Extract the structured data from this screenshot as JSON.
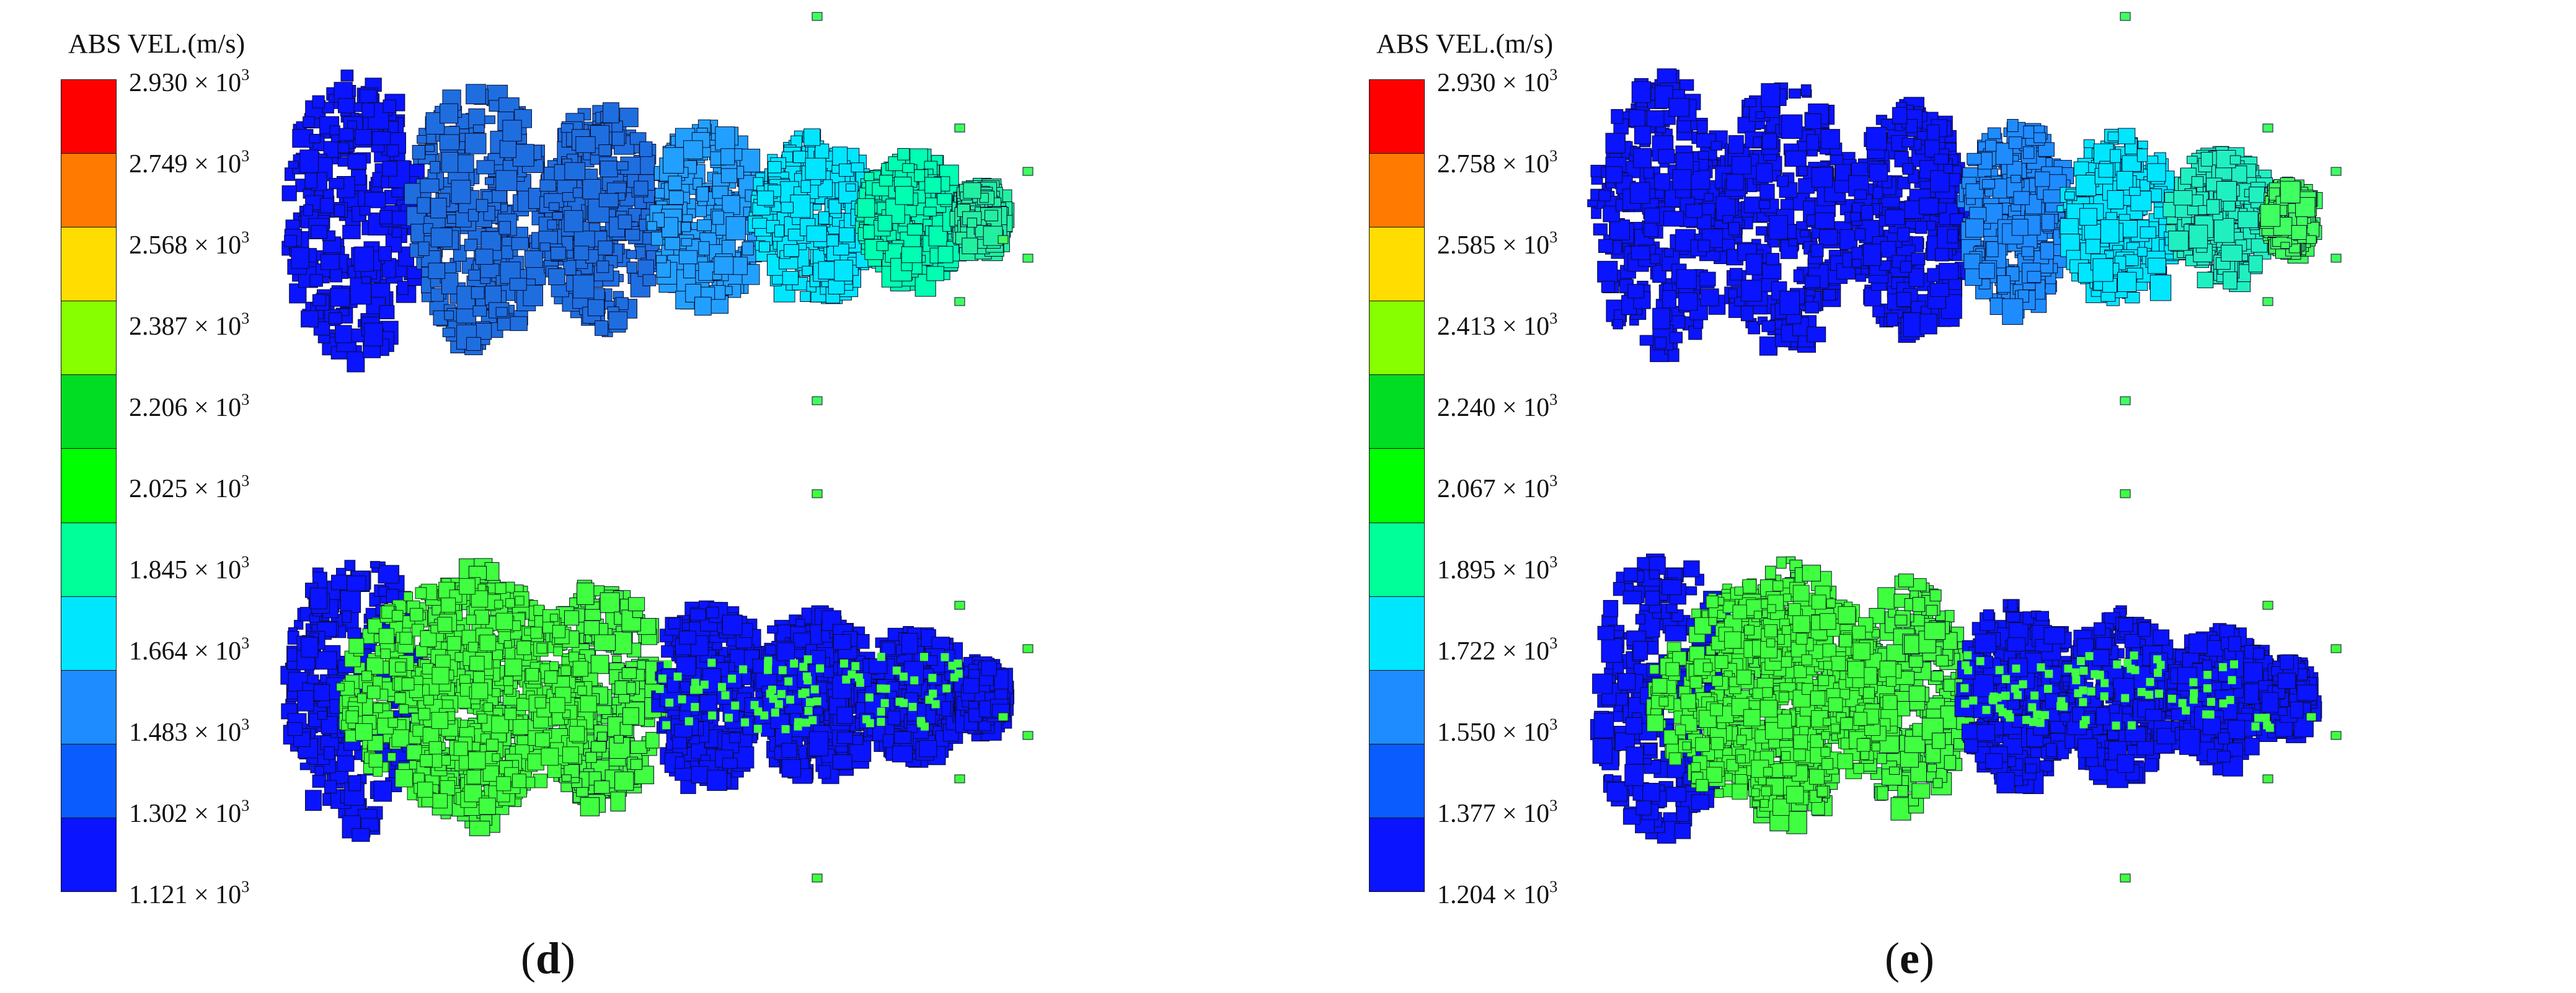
{
  "panels": [
    {
      "caption_letter": "d",
      "legend": {
        "title": "ABS VEL.(m/s)",
        "exponent": "3",
        "ticks": [
          "2.930",
          "2.749",
          "2.568",
          "2.387",
          "2.206",
          "2.025",
          "1.845",
          "1.664",
          "1.483",
          "1.302",
          "1.121"
        ],
        "colors": [
          "#ff0000",
          "#ff7a00",
          "#ffdd00",
          "#88ff00",
          "#00dd22",
          "#00ff00",
          "#00ff99",
          "#00e6ff",
          "#1e8cff",
          "#0a5cff",
          "#0a14ff"
        ]
      },
      "fragments": {
        "top_palette": [
          "#0a14ff",
          "#1e6ee0",
          "#22a0ff",
          "#00e6ff",
          "#00ffb0",
          "#22f0a0",
          "#40ff60"
        ],
        "bottom_palette": [
          "#0a14ff",
          "#40ff40",
          "#0a14ff",
          "#0a14ff"
        ]
      }
    },
    {
      "caption_letter": "e",
      "legend": {
        "title": "ABS VEL.(m/s)",
        "exponent": "3",
        "ticks": [
          "2.930",
          "2.758",
          "2.585",
          "2.413",
          "2.240",
          "2.067",
          "1.895",
          "1.722",
          "1.550",
          "1.377",
          "1.204"
        ],
        "colors": [
          "#ff0000",
          "#ff7a00",
          "#ffdd00",
          "#88ff00",
          "#00dd22",
          "#00ff00",
          "#00ff99",
          "#00e6ff",
          "#1e8cff",
          "#0a5cff",
          "#0a14ff"
        ]
      },
      "fragments": {
        "top_palette": [
          "#0a14ff",
          "#0a14ff",
          "#1e8cff",
          "#00e6ff",
          "#20f0c0",
          "#40ff60",
          "#40ff60"
        ],
        "bottom_palette": [
          "#0a14ff",
          "#40ff40",
          "#0a14ff",
          "#0a14ff"
        ]
      }
    }
  ]
}
